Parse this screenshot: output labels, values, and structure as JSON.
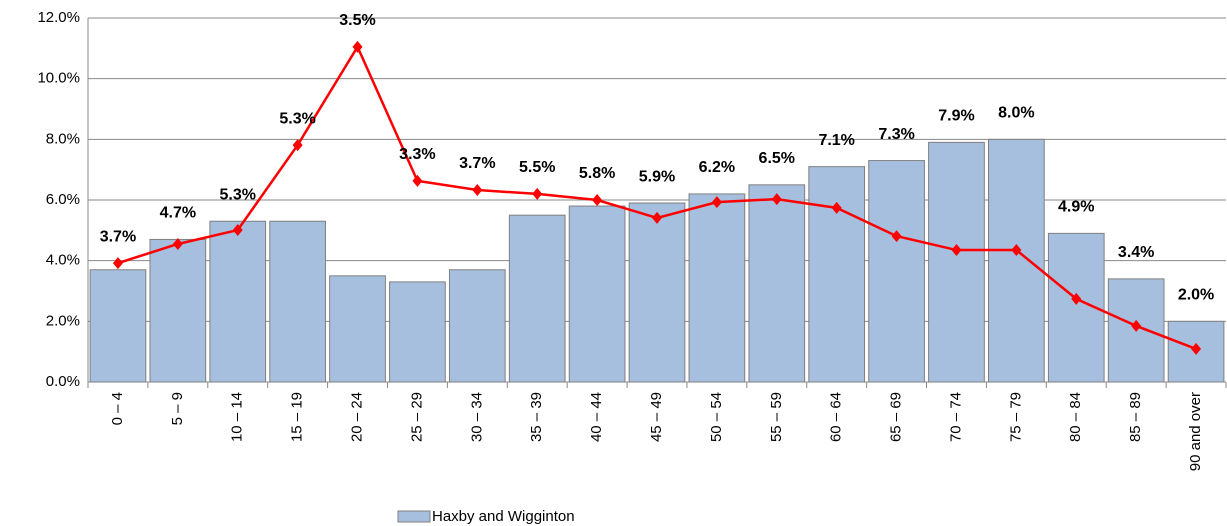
{
  "chart_data": {
    "type": "bar",
    "categories": [
      "0 – 4",
      "5 – 9",
      "10 – 14",
      "15 – 19",
      "20 – 24",
      "25 – 29",
      "30 – 34",
      "35 – 39",
      "40 – 44",
      "45 – 49",
      "50 – 54",
      "55 – 59",
      "60 – 64",
      "65 – 69",
      "70 – 74",
      "75 – 79",
      "80 – 84",
      "85 – 89",
      "90 and over"
    ],
    "series": [
      {
        "name": "Haxby and Wigginton",
        "type": "bar",
        "color": "#a7bfde",
        "values": [
          3.7,
          4.7,
          5.3,
          5.3,
          3.5,
          3.3,
          3.7,
          5.5,
          5.8,
          5.9,
          6.2,
          6.5,
          7.1,
          7.3,
          7.9,
          8.0,
          4.9,
          3.4,
          2.0
        ],
        "value_labels": [
          "3.7%",
          "4.7%",
          "5.3%",
          "5.3%",
          "3.5%",
          "3.3%",
          "3.7%",
          "5.5%",
          "5.8%",
          "5.9%",
          "6.2%",
          "6.5%",
          "7.1%",
          "7.3%",
          "7.9%",
          "8.0%",
          "4.9%",
          "3.4%",
          "2.0%"
        ]
      },
      {
        "type": "line",
        "color": "#ff0000",
        "values": [
          3.92,
          4.55,
          5.01,
          7.81,
          11.05,
          6.63,
          6.33,
          6.2,
          6.0,
          5.41,
          5.93,
          6.03,
          5.74,
          4.81,
          4.35,
          4.35,
          2.74,
          1.85,
          1.09
        ]
      }
    ],
    "ylim": [
      0,
      12
    ],
    "yticks": [
      {
        "value": 0,
        "label": "0.0%"
      },
      {
        "value": 2,
        "label": "2.0%"
      },
      {
        "value": 4,
        "label": "4.0%"
      },
      {
        "value": 6,
        "label": "6.0%"
      },
      {
        "value": 8,
        "label": "8.0%"
      },
      {
        "value": 10,
        "label": "10.0%"
      },
      {
        "value": 12,
        "label": "12.0%"
      }
    ],
    "grid": true,
    "legend": "bottom"
  }
}
